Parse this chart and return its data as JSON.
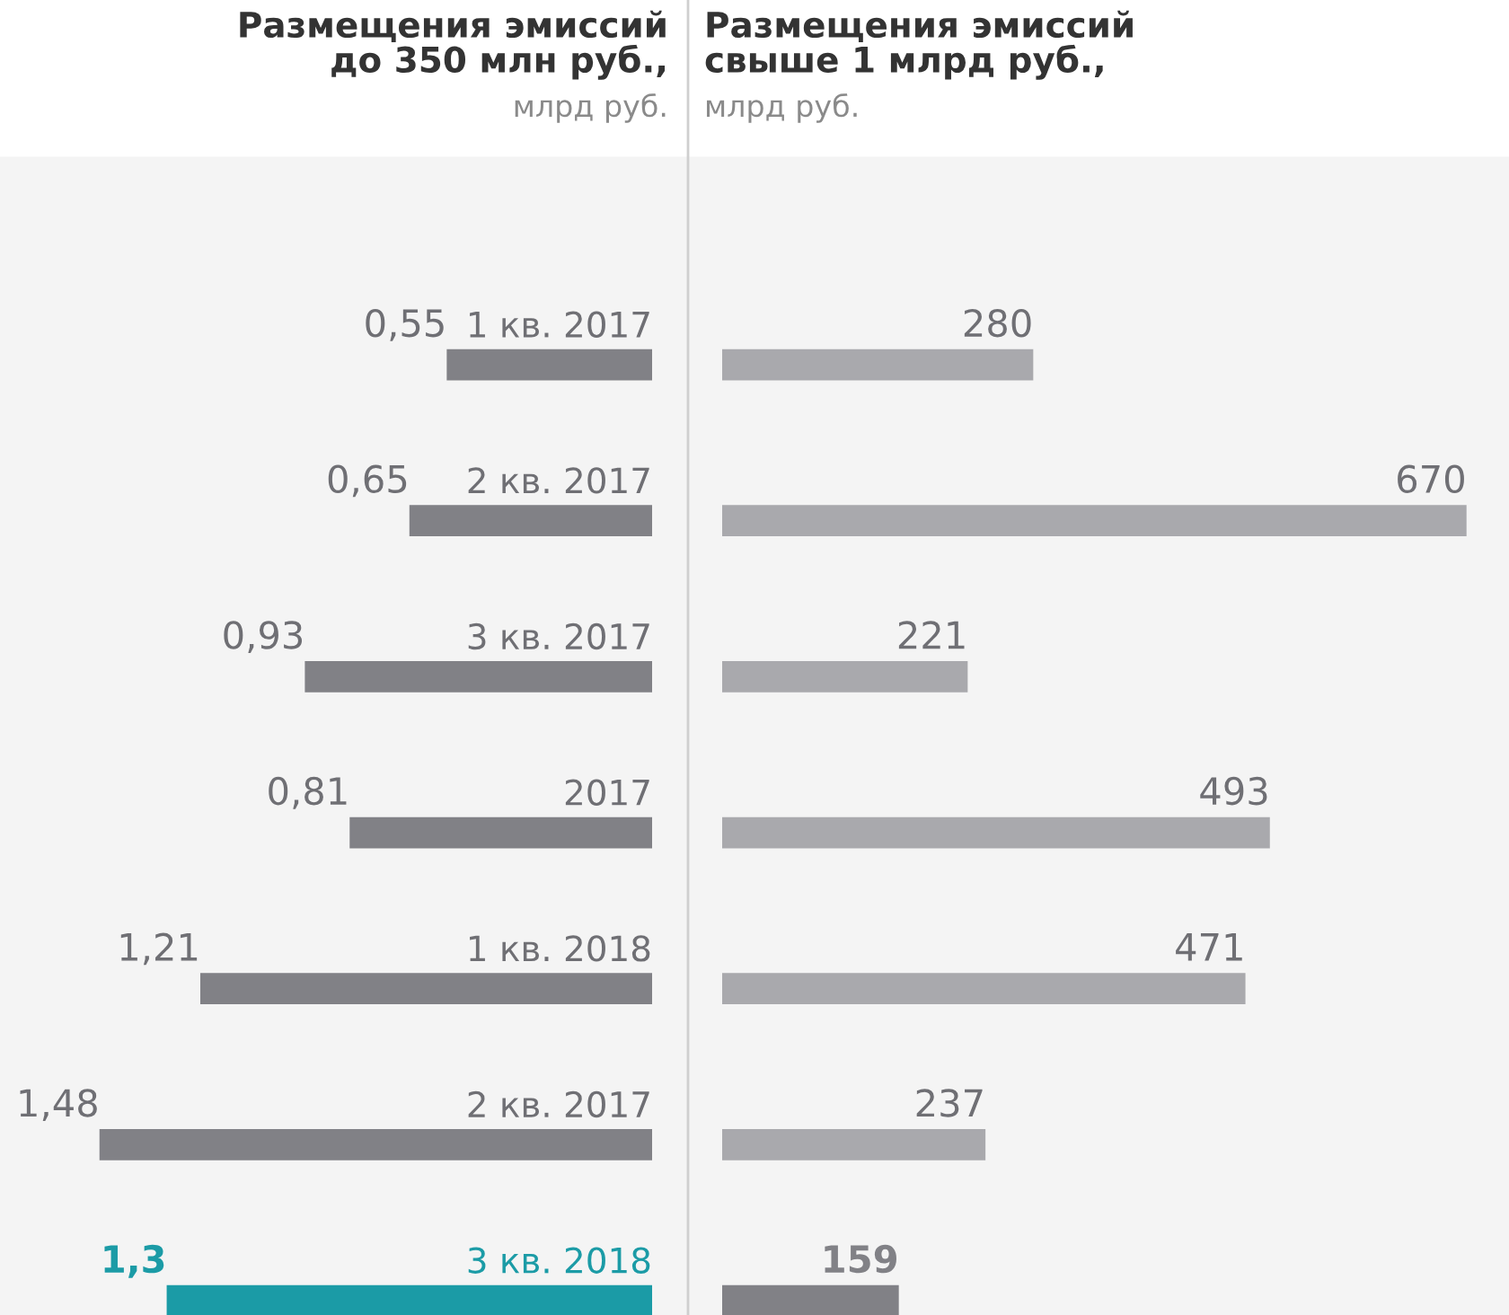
{
  "chart_data": [
    {
      "type": "bar",
      "orientation": "horizontal",
      "title": "Размещения эмиссий до 350 млн руб.,",
      "subtitle": "млрд руб.",
      "categories": [
        "1 кв. 2017",
        "2 кв. 2017",
        "3 кв. 2017",
        "2017",
        "1 кв. 2018",
        "2 кв. 2017",
        "3 кв. 2018"
      ],
      "values": [
        0.55,
        0.65,
        0.93,
        0.81,
        1.21,
        1.48,
        1.3
      ],
      "value_labels": [
        "0,55",
        "0,65",
        "0,93",
        "0,81",
        "1,21",
        "1,48",
        "1,3"
      ],
      "colors": [
        "#818186",
        "#818186",
        "#818186",
        "#818186",
        "#818186",
        "#818186",
        "#1b9ba6"
      ]
    },
    {
      "type": "bar",
      "orientation": "horizontal",
      "title": "Размещения эмиссий свыше 1 млрд руб.,",
      "subtitle": "млрд руб.",
      "categories": [
        null,
        null,
        null,
        null,
        null,
        null,
        null
      ],
      "values": [
        280,
        670,
        221,
        493,
        471,
        237,
        159
      ],
      "value_labels": [
        "280",
        "670",
        "221",
        "493",
        "471",
        "237",
        "159"
      ],
      "colors": [
        "#a9a9ad",
        "#a9a9ad",
        "#a9a9ad",
        "#a9a9ad",
        "#a9a9ad",
        "#a9a9ad",
        "#818186"
      ]
    }
  ]
}
